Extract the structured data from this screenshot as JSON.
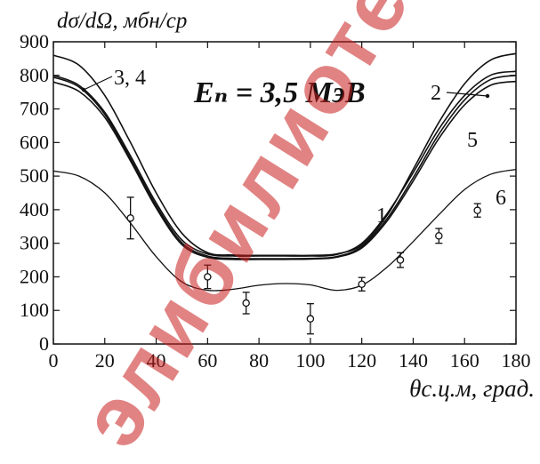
{
  "chart_data": {
    "type": "line",
    "title": "Eₙ = 3,5 МэВ",
    "ylabel": "dσ/dΩ, мбн/ср",
    "xlabel": "θс.ц.м, град.",
    "xlim": [
      0,
      180
    ],
    "ylim": [
      0,
      900
    ],
    "xticks": [
      "0",
      "20",
      "40",
      "60",
      "80",
      "100",
      "120",
      "140",
      "160",
      "180"
    ],
    "yticks": [
      "0",
      "100",
      "200",
      "300",
      "400",
      "500",
      "600",
      "700",
      "800",
      "900"
    ],
    "grid": false,
    "legend": "none",
    "x": [
      0,
      10,
      20,
      30,
      40,
      50,
      60,
      70,
      80,
      90,
      100,
      110,
      120,
      130,
      140,
      150,
      160,
      170,
      180
    ],
    "series": [
      {
        "name": "1",
        "values": [
          800,
          770,
          690,
          560,
          420,
          310,
          268,
          262,
          262,
          262,
          262,
          266,
          300,
          390,
          510,
          640,
          740,
          800,
          812
        ]
      },
      {
        "name": "2",
        "values": [
          860,
          830,
          740,
          600,
          450,
          330,
          272,
          265,
          264,
          264,
          264,
          268,
          295,
          385,
          520,
          660,
          775,
          845,
          865
        ]
      },
      {
        "name": "3, 4",
        "values": [
          795,
          765,
          684,
          552,
          412,
          302,
          262,
          255,
          254,
          254,
          255,
          260,
          290,
          375,
          495,
          625,
          727,
          787,
          800
        ]
      },
      {
        "name": "5",
        "values": [
          780,
          752,
          675,
          545,
          405,
          296,
          258,
          252,
          252,
          252,
          253,
          258,
          286,
          368,
          485,
          612,
          712,
          770,
          782
        ]
      },
      {
        "name": "6",
        "values": [
          515,
          500,
          450,
          360,
          260,
          185,
          160,
          163,
          175,
          180,
          176,
          160,
          175,
          230,
          305,
          385,
          460,
          505,
          520
        ]
      }
    ],
    "curve_labels": [
      {
        "text": "3, 4",
        "series": "3, 4"
      },
      {
        "text": "2",
        "series": "2"
      },
      {
        "text": "5",
        "series": "5"
      },
      {
        "text": "1",
        "series": "1"
      },
      {
        "text": "6",
        "series": "6"
      }
    ],
    "experiment": [
      {
        "x": 30,
        "y": 375,
        "err": 62
      },
      {
        "x": 60,
        "y": 200,
        "err": 35
      },
      {
        "x": 75,
        "y": 122,
        "err": 32
      },
      {
        "x": 100,
        "y": 75,
        "err": 45
      },
      {
        "x": 120,
        "y": 178,
        "err": 20
      },
      {
        "x": 135,
        "y": 250,
        "err": 22
      },
      {
        "x": 150,
        "y": 322,
        "err": 22
      },
      {
        "x": 165,
        "y": 398,
        "err": 20
      }
    ]
  },
  "watermark_text": "элибилиотека"
}
